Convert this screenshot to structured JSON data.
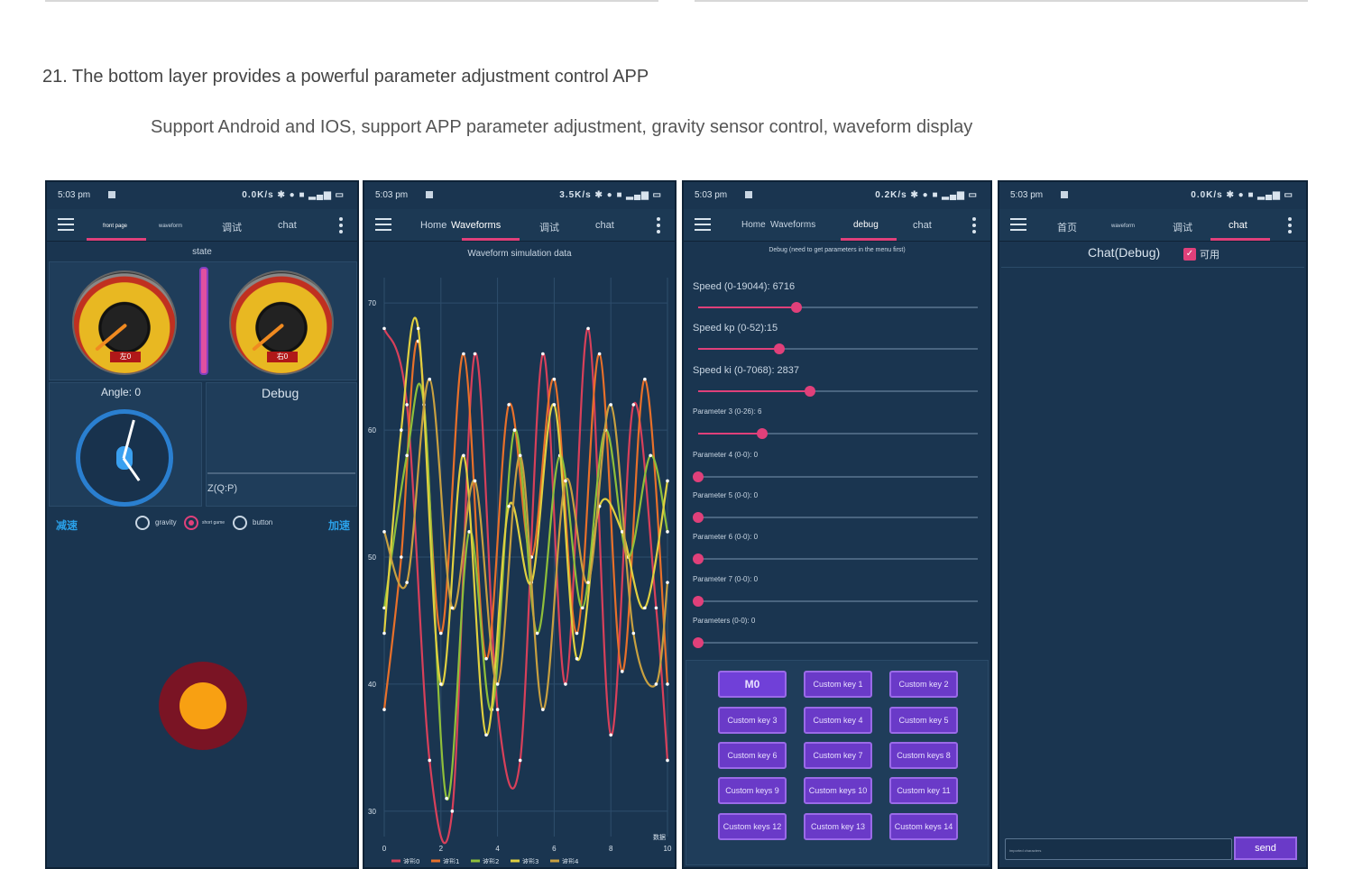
{
  "page": {
    "heading": "21. The bottom layer provides a powerful parameter adjustment control APP",
    "subheading": "Support Android and IOS, support APP parameter adjustment, gravity sensor control, waveform display"
  },
  "phone1": {
    "time": "5:03 pm",
    "status_right": "0.0K/s ✱ ● ■ ▂▄▆ ▭",
    "tabs": [
      "front page",
      "waveform",
      "调试",
      "chat"
    ],
    "section_title": "state",
    "gauge_left_label": "左0",
    "gauge_right_label": "右0",
    "angle_label": "Angle: 0",
    "debug_label": "Debug",
    "zqp_label": "Z(Q:P)",
    "left_btn": "减速",
    "right_btn": "加速",
    "radio_gravity": "gravity",
    "radio_shortgame": "short game",
    "radio_button": "button"
  },
  "phone2": {
    "time": "5:03 pm",
    "status_right": "3.5K/s ✱ ● ■ ▂▄▆ ▭",
    "tabs": [
      "Home",
      "Waveforms",
      "调试",
      "chat"
    ],
    "section_title": "Waveform simulation data",
    "legend_tail": "数据"
  },
  "chart_data": {
    "type": "line",
    "title": "Waveform simulation data",
    "x_ticks": [
      0,
      2,
      4,
      6,
      8,
      10
    ],
    "y_ticks": [
      30,
      40,
      50,
      60,
      70
    ],
    "ylim": [
      28,
      72
    ],
    "xlim": [
      0,
      10
    ],
    "series": [
      {
        "name": "波形0",
        "color": "#d8405a",
        "values": [
          [
            0,
            68
          ],
          [
            0.8,
            62
          ],
          [
            1.6,
            34
          ],
          [
            2.4,
            30
          ],
          [
            3.2,
            66
          ],
          [
            4.0,
            38
          ],
          [
            4.8,
            34
          ],
          [
            5.6,
            66
          ],
          [
            6.4,
            40
          ],
          [
            7.2,
            68
          ],
          [
            8.0,
            36
          ],
          [
            8.8,
            62
          ],
          [
            9.6,
            46
          ],
          [
            10,
            34
          ]
        ]
      },
      {
        "name": "波形1",
        "color": "#e8702a",
        "values": [
          [
            0,
            38
          ],
          [
            0.6,
            50
          ],
          [
            1.2,
            67
          ],
          [
            2.0,
            44
          ],
          [
            2.8,
            66
          ],
          [
            3.6,
            42
          ],
          [
            4.4,
            62
          ],
          [
            5.2,
            50
          ],
          [
            6.0,
            64
          ],
          [
            6.8,
            44
          ],
          [
            7.6,
            66
          ],
          [
            8.4,
            41
          ],
          [
            9.2,
            64
          ],
          [
            10,
            40
          ]
        ]
      },
      {
        "name": "波形2",
        "color": "#8fbf3a",
        "values": [
          [
            0,
            46
          ],
          [
            0.8,
            58
          ],
          [
            1.4,
            62
          ],
          [
            2.2,
            31
          ],
          [
            3.0,
            52
          ],
          [
            3.8,
            38
          ],
          [
            4.6,
            60
          ],
          [
            5.4,
            44
          ],
          [
            6.2,
            58
          ],
          [
            7.0,
            46
          ],
          [
            7.8,
            60
          ],
          [
            8.6,
            50
          ],
          [
            9.4,
            58
          ],
          [
            10,
            52
          ]
        ]
      },
      {
        "name": "波形3",
        "color": "#e0d040",
        "values": [
          [
            0,
            44
          ],
          [
            0.6,
            60
          ],
          [
            1.2,
            68
          ],
          [
            2.0,
            40
          ],
          [
            2.8,
            58
          ],
          [
            3.6,
            36
          ],
          [
            4.4,
            54
          ],
          [
            5.2,
            48
          ],
          [
            6.0,
            62
          ],
          [
            6.8,
            42
          ],
          [
            7.6,
            54
          ],
          [
            8.4,
            52
          ],
          [
            9.2,
            46
          ],
          [
            10,
            56
          ]
        ]
      },
      {
        "name": "波形4",
        "color": "#c8a040",
        "values": [
          [
            0,
            52
          ],
          [
            0.8,
            48
          ],
          [
            1.6,
            64
          ],
          [
            2.4,
            46
          ],
          [
            3.2,
            56
          ],
          [
            4.0,
            40
          ],
          [
            4.8,
            58
          ],
          [
            5.6,
            38
          ],
          [
            6.4,
            56
          ],
          [
            7.2,
            48
          ],
          [
            8.0,
            62
          ],
          [
            8.8,
            44
          ],
          [
            9.6,
            40
          ],
          [
            10,
            48
          ]
        ]
      }
    ]
  },
  "phone3": {
    "time": "5:03 pm",
    "status_right": "0.2K/s ✱ ● ■ ▂▄▆ ▭",
    "tabs": [
      "Home",
      "Waveforms",
      "debug",
      "chat"
    ],
    "section_title": "Debug (need to get parameters in the menu first)",
    "sliders": [
      {
        "label": "Speed (0-19044): 6716",
        "value": 0.35
      },
      {
        "label": "Speed kp (0-52):15",
        "value": 0.29
      },
      {
        "label": "Speed ki (0-7068): 2837",
        "value": 0.4
      },
      {
        "label": "Parameter 3 (0-26): 6",
        "value": 0.23
      },
      {
        "label": "Parameter 4 (0-0): 0",
        "value": 0
      },
      {
        "label": "Parameter 5 (0-0): 0",
        "value": 0
      },
      {
        "label": "Parameter 6 (0-0): 0",
        "value": 0
      },
      {
        "label": "Parameter 7 (0-0): 0",
        "value": 0
      },
      {
        "label": "Parameters (0-0): 0",
        "value": 0
      }
    ],
    "keys": [
      "M0",
      "Custom key 1",
      "Custom key 2",
      "Custom key 3",
      "Custom key 4",
      "Custom key 5",
      "Custom key 6",
      "Custom key 7",
      "Custom keys 8",
      "Custom keys 9",
      "Custom keys 10",
      "Custom key 11",
      "Custom keys 12",
      "Custom key 13",
      "Custom keys 14"
    ]
  },
  "phone4": {
    "time": "5:03 pm",
    "status_right": "0.0K/s ✱ ● ■ ▂▄▆ ▭",
    "tabs": [
      "首页",
      "waveform",
      "调试",
      "chat"
    ],
    "chat_title": "Chat(Debug)",
    "checkbox_label": "可用",
    "input_placeholder": "imported characters",
    "send_label": "send"
  }
}
